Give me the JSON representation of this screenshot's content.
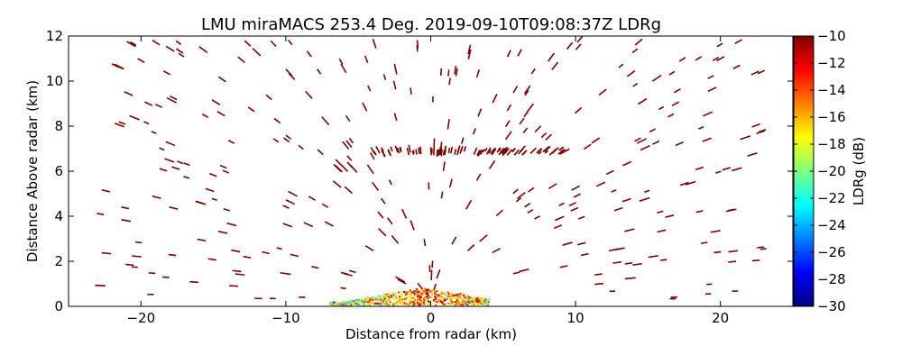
{
  "chart_data": {
    "type": "heatmap",
    "title": "LMU miraMACS 253.4 Deg. 2019-09-10T09:08:37Z  LDRg",
    "xlabel": "Distance from radar (km)",
    "ylabel": "Distance Above radar  (km)",
    "xlim": [
      -25,
      25
    ],
    "ylim": [
      0,
      12
    ],
    "x_ticks": [
      -20,
      -10,
      0,
      10,
      20
    ],
    "y_ticks": [
      0,
      2,
      4,
      6,
      8,
      10,
      12
    ],
    "colorbar": {
      "label": "LDRg (dB)",
      "vmin": -30,
      "vmax": -10,
      "ticks": [
        -10,
        -12,
        -14,
        -16,
        -18,
        -20,
        -22,
        -24,
        -26,
        -28,
        -30
      ],
      "colormap": "jet",
      "colors": [
        "#00007f",
        "#0000ff",
        "#007fff",
        "#00ffff",
        "#7fff7f",
        "#ffff00",
        "#ff7f00",
        "#ff0000",
        "#7f0000"
      ]
    },
    "features": [
      {
        "region": "cloud layer",
        "x_range_km": [
          -4,
          10
        ],
        "height_km": [
          6.8,
          7.0
        ],
        "ldr_db": -10
      },
      {
        "region": "near-radar clutter",
        "x_range_km": [
          -7,
          4
        ],
        "height_km": [
          0,
          0.8
        ],
        "ldr_db_range": [
          -28,
          -10
        ]
      },
      {
        "region": "scattered echoes",
        "x_range_km": [
          -23,
          23
        ],
        "height_km": [
          0,
          12
        ],
        "ldr_db": -10
      }
    ],
    "grid": false
  }
}
